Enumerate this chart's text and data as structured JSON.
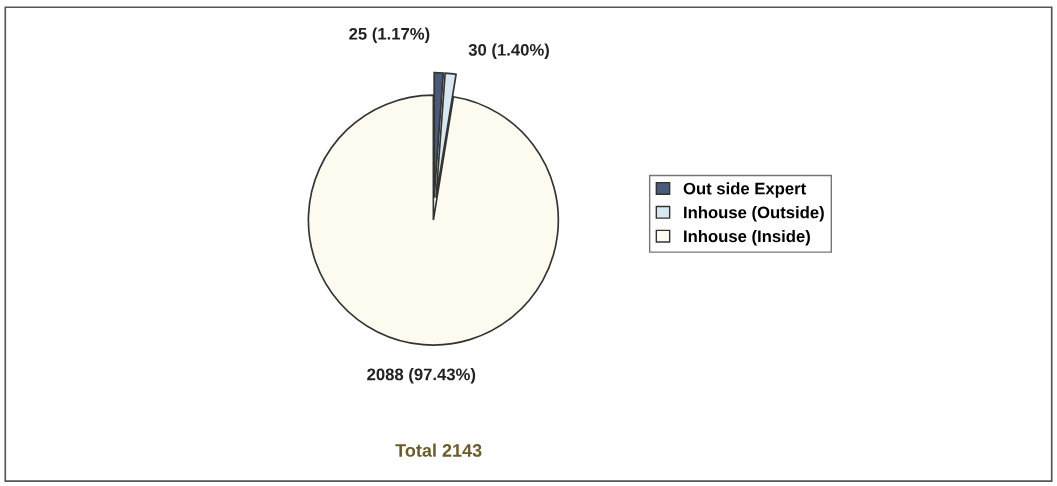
{
  "chart_data": {
    "type": "pie",
    "categories": [
      "Out side Expert",
      "Inhouse (Outside)",
      "Inhouse (Inside)"
    ],
    "values": [
      25,
      30,
      2088
    ],
    "colors": [
      "#4a5a78",
      "#d8e8f0",
      "#fdfbef"
    ],
    "value_labels": [
      "25 (1.17%)",
      "30 (1.40%)",
      "2088 (97.43%)"
    ],
    "annotations": [
      "Total 2143"
    ],
    "legend": "right"
  }
}
